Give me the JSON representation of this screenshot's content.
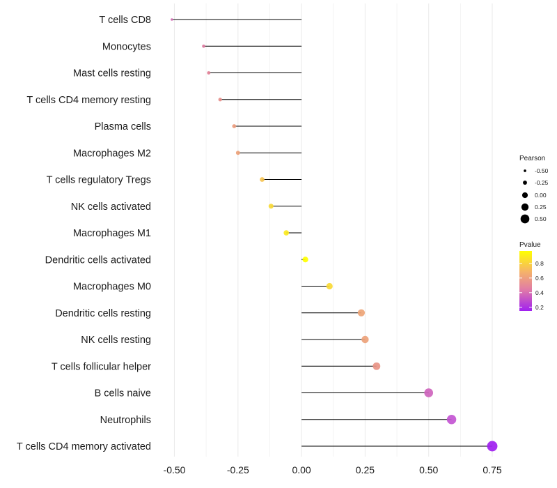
{
  "chart_data": {
    "type": "lollipop",
    "title": "",
    "xlabel": "",
    "ylabel": "",
    "xlim": [
      -0.55,
      0.78
    ],
    "xticks": [
      -0.5,
      -0.25,
      0.0,
      0.25,
      0.5,
      0.75
    ],
    "xtick_labels": [
      "-0.50",
      "-0.25",
      "0.00",
      "0.25",
      "0.50",
      "0.75"
    ],
    "grid": true,
    "points": [
      {
        "category": "T cells CD8",
        "value": -0.51,
        "pvalue": 0.45
      },
      {
        "category": "Monocytes",
        "value": -0.385,
        "pvalue": 0.52
      },
      {
        "category": "Mast cells resting",
        "value": -0.365,
        "pvalue": 0.55
      },
      {
        "category": "T cells CD4 memory resting",
        "value": -0.32,
        "pvalue": 0.6
      },
      {
        "category": "Plasma cells",
        "value": -0.265,
        "pvalue": 0.65
      },
      {
        "category": "Macrophages M2",
        "value": -0.25,
        "pvalue": 0.67
      },
      {
        "category": "T cells regulatory  Tregs ",
        "value": -0.155,
        "pvalue": 0.78
      },
      {
        "category": "NK cells activated",
        "value": -0.12,
        "pvalue": 0.85
      },
      {
        "category": "Macrophages M1",
        "value": -0.06,
        "pvalue": 0.9
      },
      {
        "category": "Dendritic cells activated",
        "value": 0.015,
        "pvalue": 0.97
      },
      {
        "category": "Macrophages M0",
        "value": 0.11,
        "pvalue": 0.85
      },
      {
        "category": "Dendritic cells resting",
        "value": 0.235,
        "pvalue": 0.68
      },
      {
        "category": "NK cells resting",
        "value": 0.25,
        "pvalue": 0.67
      },
      {
        "category": "T cells follicular helper",
        "value": 0.295,
        "pvalue": 0.62
      },
      {
        "category": "B cells naive",
        "value": 0.5,
        "pvalue": 0.42
      },
      {
        "category": "Neutrophils",
        "value": 0.59,
        "pvalue": 0.35
      },
      {
        "category": "T cells CD4 memory activated",
        "value": 0.75,
        "pvalue": 0.15
      }
    ],
    "legend_size": {
      "title": "Pearson",
      "entries": [
        {
          "label": "-0.50",
          "value": -0.5
        },
        {
          "label": "-0.25",
          "value": -0.25
        },
        {
          "label": "0.00",
          "value": 0.0
        },
        {
          "label": "0.25",
          "value": 0.25
        },
        {
          "label": "0.50",
          "value": 0.5
        }
      ]
    },
    "legend_color": {
      "title": "Pvalue",
      "range": [
        0.15,
        0.97
      ],
      "ticks": [
        {
          "label": "0.8",
          "value": 0.8
        },
        {
          "label": "0.6",
          "value": 0.6
        },
        {
          "label": "0.4",
          "value": 0.4
        },
        {
          "label": "0.2",
          "value": 0.2
        }
      ],
      "low_color": "#a020f0",
      "high_color": "#ffff00"
    },
    "colors": {
      "stem": "#000000",
      "grid": "#ebebeb",
      "palette": [
        "#a020f0",
        "#c055d8",
        "#e085a0",
        "#f0b070",
        "#ffff00"
      ]
    }
  }
}
